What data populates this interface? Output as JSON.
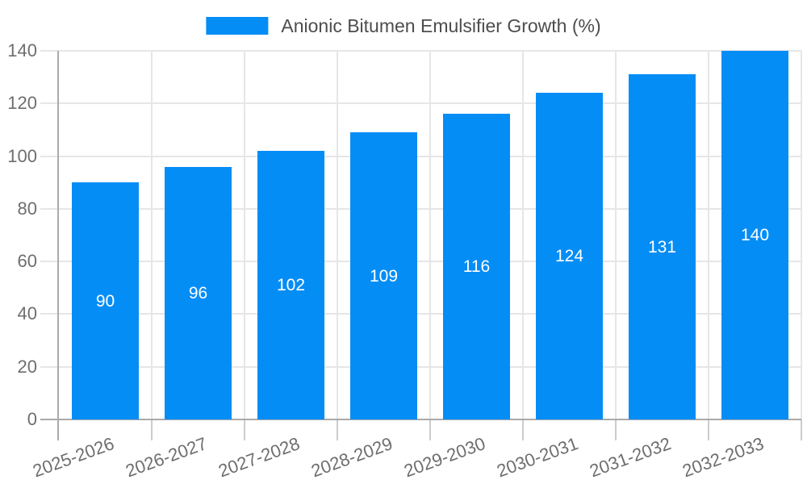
{
  "colors": {
    "bar": "#058df6",
    "axis_line": "#aaaaaa",
    "gridline": "#e6e6e6",
    "x_tick": "#cccccc",
    "axis_text": "#6e6e6e",
    "legend_text": "#4d4d4d",
    "value_text": "#ffffff",
    "background": "#ffffff"
  },
  "chart_data": {
    "type": "bar",
    "title": "",
    "xlabel": "",
    "ylabel": "",
    "categories": [
      "2025-2026",
      "2026-2027",
      "2027-2028",
      "2028-2029",
      "2029-2030",
      "2030-2031",
      "2031-2032",
      "2032-2033"
    ],
    "series": [
      {
        "name": "Anionic Bitumen Emulsifier Growth (%)",
        "values": [
          90,
          96,
          102,
          109,
          116,
          124,
          131,
          140
        ]
      }
    ],
    "ylim": [
      0,
      140
    ],
    "yticks": [
      0,
      20,
      40,
      60,
      80,
      100,
      120,
      140
    ],
    "grid": true,
    "legend_position": "top-center",
    "x_tick_rotation_deg": -20,
    "value_label_position": "inside-center"
  }
}
